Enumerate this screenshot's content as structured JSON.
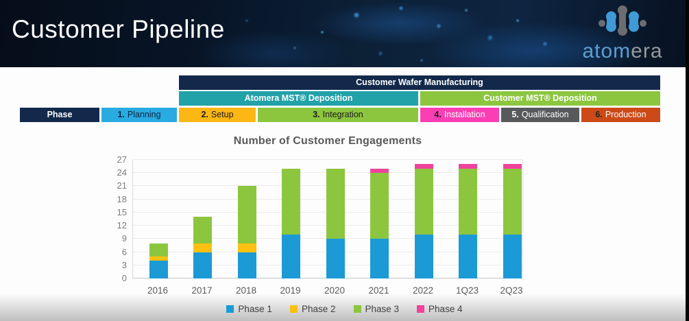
{
  "header": {
    "title": "Customer Pipeline",
    "logo": {
      "text_blue": "atom",
      "text_gray": "era",
      "mark": "atomera-molecule-icon"
    }
  },
  "pipeline_table": {
    "top_banner": "Customer Wafer Manufacturing",
    "groups": [
      {
        "label": "Atomera MST® Deposition",
        "color": "#21a1a8"
      },
      {
        "label": "Customer MST® Deposition",
        "color": "#8cc63f"
      }
    ],
    "row_header": "Phase",
    "phases": [
      {
        "num": "1.",
        "label": "Planning",
        "color": "#29abe2"
      },
      {
        "num": "2.",
        "label": "Setup",
        "color": "#fdb714"
      },
      {
        "num": "3.",
        "label": "Integration",
        "color": "#8cc63f"
      },
      {
        "num": "4.",
        "label": "Installation",
        "color": "#fb3eb3"
      },
      {
        "num": "5.",
        "label": "Qualification",
        "color": "#58595b"
      },
      {
        "num": "6.",
        "label": "Production",
        "color": "#cb4a17"
      }
    ]
  },
  "chart_data": {
    "type": "bar",
    "stacked": true,
    "title": "Number of Customer Engagements",
    "categories": [
      "2016",
      "2017",
      "2018",
      "2019",
      "2020",
      "2021",
      "2022",
      "1Q23",
      "2Q23"
    ],
    "series": [
      {
        "name": "Phase 1",
        "color": "#1b9ad6",
        "values": [
          4,
          6,
          6,
          10,
          9,
          9,
          10,
          10,
          10
        ]
      },
      {
        "name": "Phase 2",
        "color": "#fdc010",
        "values": [
          1,
          2,
          2,
          0,
          0,
          0,
          0,
          0,
          0
        ]
      },
      {
        "name": "Phase 3",
        "color": "#8cc63f",
        "values": [
          3,
          6,
          13,
          15,
          16,
          15,
          15,
          15,
          15
        ]
      },
      {
        "name": "Phase 4",
        "color": "#f0449b",
        "values": [
          0,
          0,
          0,
          0,
          0,
          1,
          1,
          1,
          1
        ]
      }
    ],
    "totals": [
      8,
      14,
      21,
      25,
      25,
      25,
      26,
      26,
      26
    ],
    "ylim": [
      0,
      27
    ],
    "ytick_step": 3,
    "grid": true,
    "legend_position": "bottom"
  },
  "colors": {
    "header_bg": "#0a1graduate_unused",
    "banner_navy": "#12294b",
    "title_gray": "#595959",
    "axis_gray": "#7c7c7c"
  }
}
